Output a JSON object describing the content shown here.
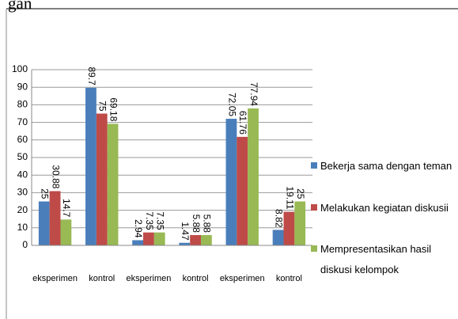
{
  "page_text": "gan",
  "chart_data": {
    "type": "bar",
    "categories": [
      "eksperimen",
      "kontrol",
      "eksperimen",
      "kontrol",
      "eksperimen",
      "kontrol"
    ],
    "series": [
      {
        "name": "Bekerja sama dengan teman",
        "color": "#4a7ebb",
        "values": [
          25,
          89.7,
          2.94,
          1.47,
          72.05,
          8.82
        ]
      },
      {
        "name": "Melakukan kegiatan diskusii",
        "color": "#be4b48",
        "values": [
          30.88,
          75,
          7.35,
          5.88,
          61.76,
          19.11
        ]
      },
      {
        "name": "Mempresentasikan hasil diskusi kelompok",
        "color": "#98b954",
        "values": [
          14.7,
          69.18,
          7.35,
          5.88,
          77.94,
          25
        ]
      }
    ],
    "ylim": [
      0,
      100
    ],
    "yticks": [
      0,
      10,
      20,
      30,
      40,
      50,
      60,
      70,
      80,
      90,
      100
    ],
    "grid": true,
    "legend": "right"
  }
}
